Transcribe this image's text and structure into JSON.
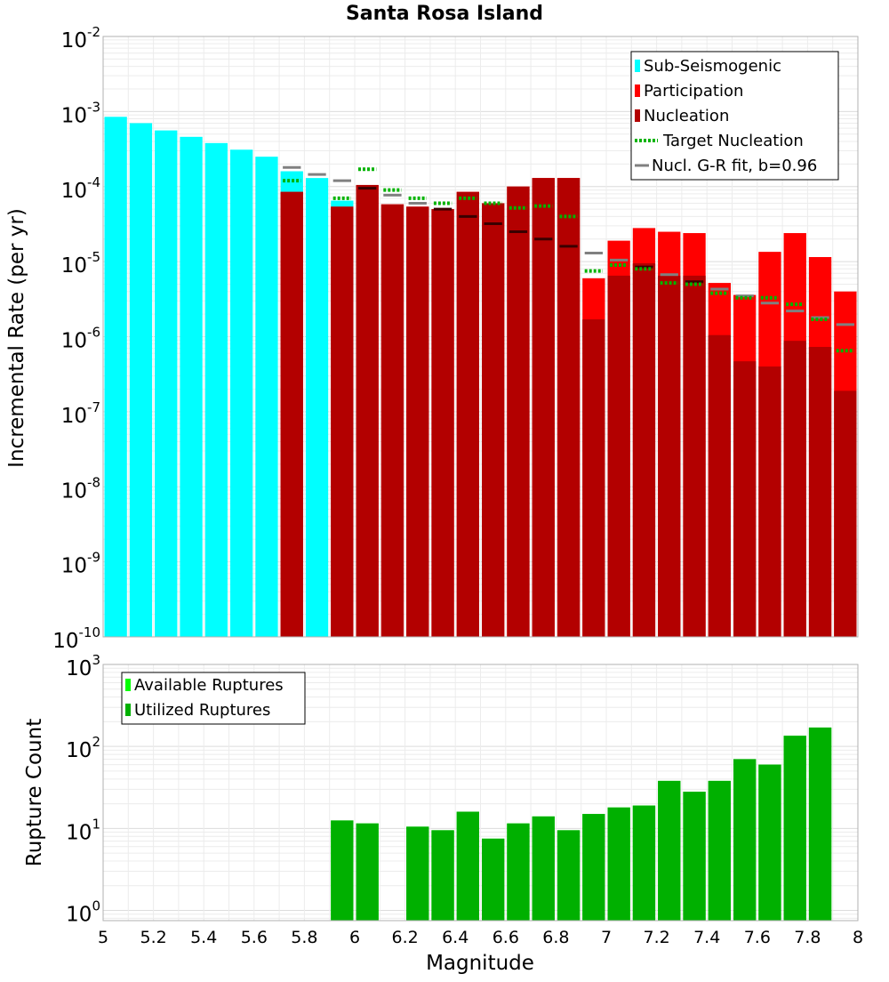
{
  "title": "Santa Rosa Island",
  "colors": {
    "sub_seismogenic": "#00ffff",
    "participation": "#ff0000",
    "nucleation": "#b30000",
    "target_nucleation": "#00b300",
    "gr_fit": "#808080",
    "available": "#00ff00",
    "utilized": "#00b000"
  },
  "chart_data": [
    {
      "type": "bar",
      "title": "Santa Rosa Island",
      "xlabel": "",
      "ylabel": "Incremental Rate (per yr)",
      "yscale": "log",
      "xlim": [
        5,
        8
      ],
      "ylim": [
        1e-10,
        0.01
      ],
      "bin_width": 0.1,
      "y_tick_labels": [
        {
          "base": "10",
          "exp": "-2"
        },
        {
          "base": "10",
          "exp": "-3"
        },
        {
          "base": "10",
          "exp": "-4"
        },
        {
          "base": "10",
          "exp": "-5"
        },
        {
          "base": "10",
          "exp": "-6"
        },
        {
          "base": "10",
          "exp": "-7"
        },
        {
          "base": "10",
          "exp": "-8"
        },
        {
          "base": "10",
          "exp": "-9"
        },
        {
          "base": "10",
          "exp": "-10"
        }
      ],
      "legend": [
        {
          "label": "Sub-Seismogenic",
          "kind": "bar",
          "color": "#00ffff"
        },
        {
          "label": "Participation",
          "kind": "bar",
          "color": "#ff0000"
        },
        {
          "label": "Nucleation",
          "kind": "bar",
          "color": "#b30000"
        },
        {
          "label": "Target Nucleation",
          "kind": "dotted",
          "color": "#00b300"
        },
        {
          "label": "Nucl. G-R fit, b=0.96",
          "kind": "line",
          "color": "#808080"
        }
      ],
      "legend_position": "top-right",
      "series": [
        {
          "name": "Sub-Seismogenic",
          "x": [
            5.05,
            5.15,
            5.25,
            5.35,
            5.45,
            5.55,
            5.65,
            5.75,
            5.85,
            5.95
          ],
          "values": [
            0.00085,
            0.0007,
            0.00056,
            0.00046,
            0.00038,
            0.00031,
            0.00025,
            0.00016,
            0.00013,
            6.5e-05
          ]
        },
        {
          "name": "Participation",
          "x": [
            5.75,
            5.95,
            6.05,
            6.15,
            6.25,
            6.35,
            6.45,
            6.55,
            6.65,
            6.75,
            6.85,
            6.95,
            7.05,
            7.15,
            7.25,
            7.35,
            7.45,
            7.55,
            7.65,
            7.75,
            7.85,
            7.95
          ],
          "values": [
            8.5e-05,
            5.4e-05,
            0.000105,
            5.8e-05,
            5.4e-05,
            5e-05,
            8.5e-05,
            6e-05,
            0.0001,
            0.00013,
            0.00013,
            6e-06,
            1.9e-05,
            2.8e-05,
            2.5e-05,
            2.4e-05,
            5.2e-06,
            3.6e-06,
            1.35e-05,
            2.4e-05,
            1.15e-05,
            4e-06
          ]
        },
        {
          "name": "Nucleation",
          "x": [
            5.75,
            5.95,
            6.05,
            6.15,
            6.25,
            6.35,
            6.45,
            6.55,
            6.65,
            6.75,
            6.85,
            6.95,
            7.05,
            7.15,
            7.25,
            7.35,
            7.45,
            7.55,
            7.65,
            7.75,
            7.85,
            7.95
          ],
          "values": [
            8.5e-05,
            5.4e-05,
            0.000105,
            5.8e-05,
            5.4e-05,
            5e-05,
            8.5e-05,
            6e-05,
            0.0001,
            0.00013,
            0.00013,
            1.7e-06,
            6.5e-06,
            9.5e-06,
            6.5e-06,
            6.5e-06,
            1.05e-06,
            4.7e-07,
            4e-07,
            8.8e-07,
            7.3e-07,
            1.9e-07
          ]
        },
        {
          "name": "Target Nucleation",
          "x": [
            5.75,
            5.95,
            6.05,
            6.15,
            6.25,
            6.35,
            6.45,
            6.55,
            6.65,
            6.75,
            6.85,
            6.95,
            7.05,
            7.15,
            7.25,
            7.35,
            7.45,
            7.55,
            7.65,
            7.75,
            7.85,
            7.95
          ],
          "values": [
            0.00012,
            7e-05,
            0.00017,
            9e-05,
            7e-05,
            6e-05,
            7e-05,
            6e-05,
            5.2e-05,
            5.5e-05,
            4e-05,
            7.5e-06,
            9e-06,
            8e-06,
            5.2e-06,
            5e-06,
            3.8e-06,
            3.3e-06,
            3.3e-06,
            2.7e-06,
            1.7e-06,
            6.5e-07
          ]
        },
        {
          "name": "Nucl. G-R fit, b=0.96",
          "x": [
            5.75,
            5.85,
            5.95,
            6.05,
            6.15,
            6.25,
            6.35,
            6.45,
            6.55,
            6.65,
            6.75,
            6.85,
            6.95,
            7.05,
            7.15,
            7.25,
            7.35,
            7.45,
            7.55,
            7.65,
            7.75,
            7.85,
            7.95
          ],
          "values": [
            0.00018,
            0.000145,
            0.00012,
            9.5e-05,
            7.7e-05,
            6e-05,
            5e-05,
            4e-05,
            3.2e-05,
            2.5e-05,
            2e-05,
            1.6e-05,
            1.3e-05,
            1.05e-05,
            8.5e-06,
            6.7e-06,
            5.4e-06,
            4.3e-06,
            3.5e-06,
            2.8e-06,
            2.2e-06,
            1.8e-06,
            1.45e-06
          ]
        }
      ]
    },
    {
      "type": "bar",
      "xlabel": "Magnitude",
      "ylabel": "Rupture Count",
      "yscale": "log",
      "xlim": [
        5,
        8
      ],
      "ylim": [
        0.75,
        1000
      ],
      "bin_width": 0.1,
      "x_tick_labels": [
        "5",
        "5.2",
        "5.4",
        "5.6",
        "5.8",
        "6",
        "6.2",
        "6.4",
        "6.6",
        "6.8",
        "7",
        "7.2",
        "7.4",
        "7.6",
        "7.8",
        "8"
      ],
      "y_tick_labels": [
        {
          "base": "10",
          "exp": "3"
        },
        {
          "base": "10",
          "exp": "2"
        },
        {
          "base": "10",
          "exp": "1"
        },
        {
          "base": "10",
          "exp": "0"
        }
      ],
      "legend": [
        {
          "label": "Available Ruptures",
          "kind": "bar",
          "color": "#00ff00"
        },
        {
          "label": "Utilized Ruptures",
          "kind": "bar",
          "color": "#00b000"
        }
      ],
      "legend_position": "top-left",
      "series": [
        {
          "name": "Available Ruptures",
          "x": [
            5.95,
            6.05,
            6.25,
            6.35,
            6.45,
            6.55,
            6.65,
            6.75,
            6.85,
            6.95,
            7.05,
            7.15,
            7.25,
            7.35,
            7.45,
            7.55,
            7.65,
            7.75,
            7.85
          ],
          "values": [
            12.5,
            11.5,
            10.5,
            9.5,
            16,
            7.5,
            11.5,
            14,
            9.5,
            15,
            18,
            19,
            38,
            28,
            38,
            70,
            60,
            135,
            170
          ]
        },
        {
          "name": "Utilized Ruptures",
          "x": [
            5.95,
            6.05,
            6.25,
            6.35,
            6.45,
            6.55,
            6.65,
            6.75,
            6.85,
            6.95,
            7.05,
            7.15,
            7.25,
            7.35,
            7.45,
            7.55,
            7.65,
            7.75,
            7.85
          ],
          "values": [
            12.5,
            11.5,
            10.5,
            9.5,
            16,
            7.5,
            11.5,
            14,
            9.5,
            15,
            18,
            19,
            38,
            28,
            38,
            70,
            60,
            135,
            170
          ]
        }
      ]
    }
  ]
}
